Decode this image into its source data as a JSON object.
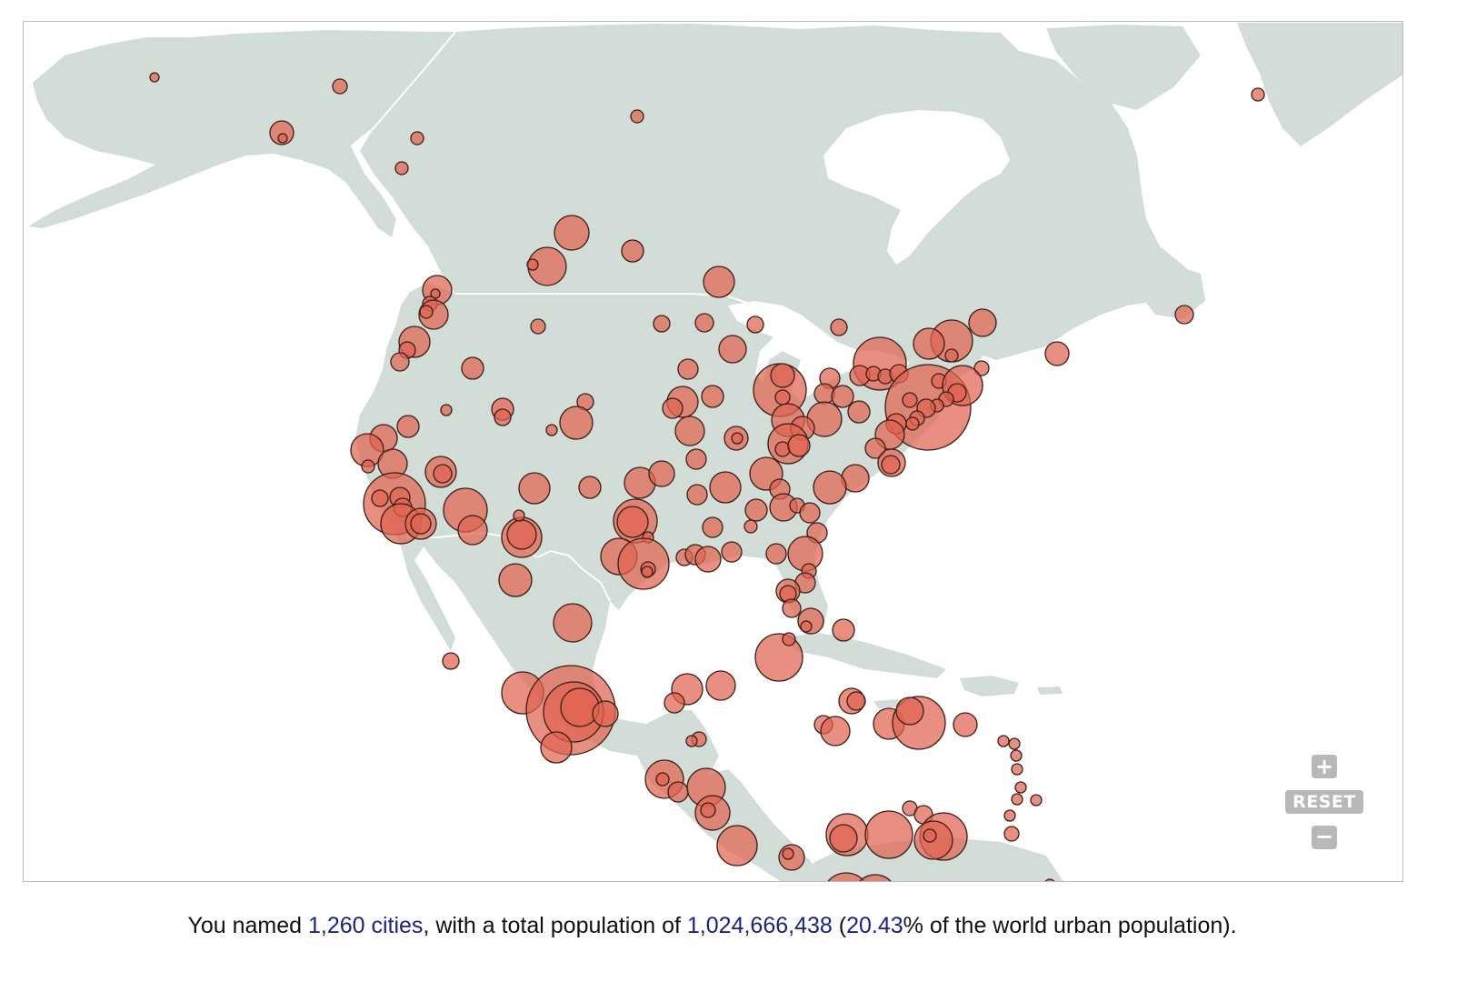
{
  "map": {
    "colors": {
      "land": "#d2ddd8",
      "water": "#ffffff",
      "city_fill": "#e06450",
      "city_stroke": "#3a1d18"
    },
    "zoom_controls": {
      "zoom_in_icon": "plus-icon",
      "reset_label": "RESET",
      "zoom_out_icon": "minus-icon"
    }
  },
  "summary": {
    "prefix": "You named ",
    "city_count": "1,260 cities",
    "middle": ", with a total population of ",
    "total_population": "1,024,666,438",
    "paren_open": " (",
    "percent": "20.43",
    "suffix": "% of the world urban population)."
  }
}
